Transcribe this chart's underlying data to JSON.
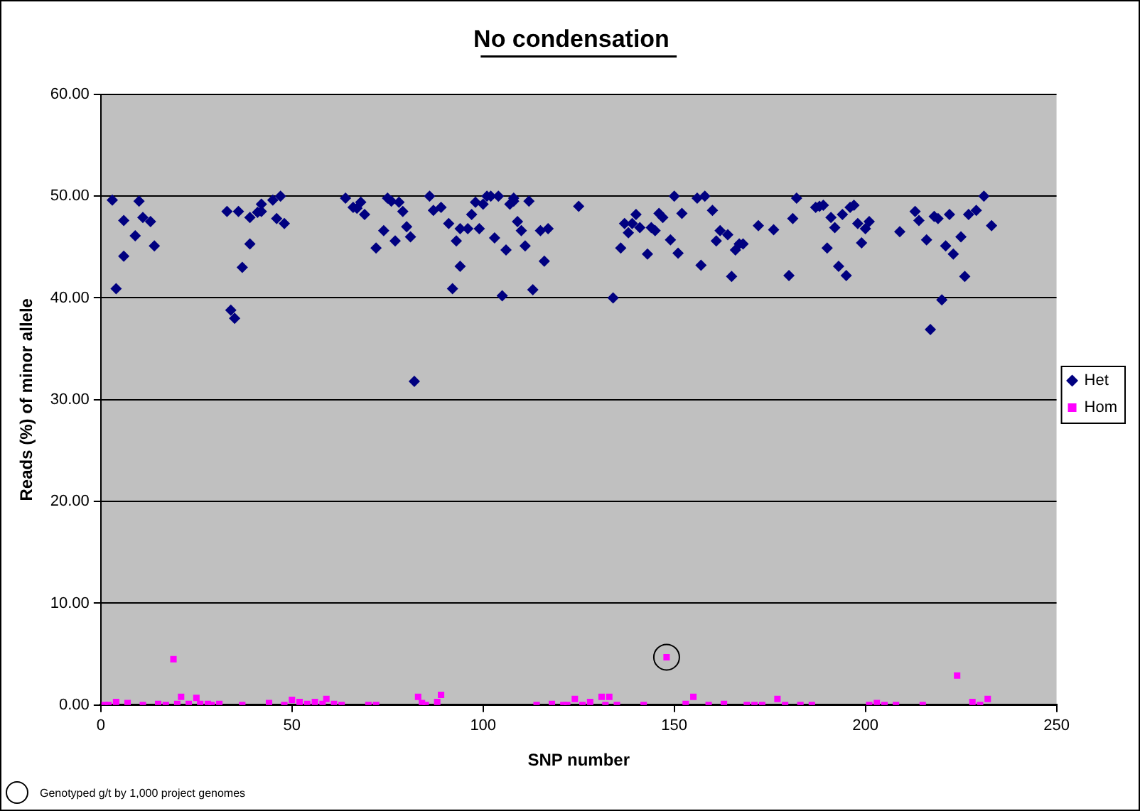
{
  "chart_data": {
    "type": "scatter",
    "title": "No condensation",
    "xlabel": "SNP number",
    "ylabel": "Reads (%) of minor allele",
    "xlim": [
      0,
      250
    ],
    "xticks": [
      0,
      50,
      100,
      150,
      200,
      250
    ],
    "ylim": [
      0,
      60
    ],
    "yticks": [
      {
        "value": 0,
        "label": "0.00"
      },
      {
        "value": 10,
        "label": "10.00"
      },
      {
        "value": 20,
        "label": "20.00"
      },
      {
        "value": 30,
        "label": "30.00"
      },
      {
        "value": 40,
        "label": "40.00"
      },
      {
        "value": 50,
        "label": "50.00"
      },
      {
        "value": 60,
        "label": "60.00"
      }
    ],
    "grid": "y",
    "legend": "right",
    "annotations": [
      "Genotyped g/t by 1,000 project genomes"
    ],
    "series": [
      {
        "name": "Het",
        "color": "#000080",
        "marker": "diamond",
        "x": [
          3,
          4,
          6,
          6,
          9,
          10,
          11,
          13,
          14,
          33,
          34,
          35,
          36,
          37,
          39,
          39,
          41,
          42,
          42,
          45,
          46,
          47,
          48,
          64,
          66,
          67,
          68,
          69,
          72,
          74,
          75,
          76,
          77,
          78,
          79,
          80,
          81,
          82,
          86,
          87,
          89,
          91,
          93,
          94,
          92,
          94,
          96,
          97,
          98,
          99,
          100,
          101,
          102,
          104,
          103,
          106,
          105,
          107,
          108,
          108,
          109,
          110,
          111,
          112,
          113,
          115,
          116,
          117,
          125,
          134,
          136,
          137,
          138,
          139,
          140,
          141,
          143,
          144,
          145,
          146,
          147,
          149,
          150,
          151,
          152,
          156,
          157,
          158,
          160,
          161,
          162,
          164,
          165,
          166,
          167,
          168,
          172,
          176,
          180,
          181,
          182,
          187,
          188,
          189,
          190,
          191,
          192,
          193,
          194,
          195,
          196,
          197,
          198,
          199,
          200,
          201,
          209,
          213,
          214,
          216,
          218,
          219,
          221,
          222,
          223,
          225,
          226,
          227,
          229,
          231,
          233,
          220,
          217
        ],
        "values": [
          49.6,
          40.9,
          47.6,
          44.1,
          46.1,
          49.5,
          47.9,
          47.5,
          45.1,
          48.5,
          38.8,
          38.0,
          48.5,
          43.0,
          45.3,
          47.9,
          48.4,
          49.2,
          48.5,
          49.6,
          47.8,
          50.0,
          47.3,
          49.8,
          48.9,
          48.8,
          49.4,
          48.2,
          44.9,
          46.6,
          49.8,
          49.5,
          45.6,
          49.4,
          48.5,
          47.0,
          46.0,
          31.8,
          50.0,
          48.6,
          48.9,
          47.3,
          45.6,
          43.1,
          40.9,
          46.8,
          46.8,
          48.2,
          49.4,
          46.8,
          49.2,
          50.0,
          50.0,
          50.0,
          45.9,
          44.7,
          40.2,
          49.2,
          49.5,
          49.8,
          47.5,
          46.6,
          45.1,
          49.5,
          40.8,
          46.6,
          43.6,
          46.8,
          49.0,
          40.0,
          44.9,
          47.3,
          46.4,
          47.3,
          48.2,
          46.9,
          44.3,
          46.9,
          46.6,
          48.3,
          47.9,
          45.7,
          50.0,
          44.4,
          48.3,
          49.8,
          43.2,
          50.0,
          48.6,
          45.6,
          46.6,
          46.2,
          42.1,
          44.7,
          45.3,
          45.3,
          47.1,
          46.7,
          42.2,
          47.8,
          49.8,
          48.9,
          49.0,
          49.1,
          44.9,
          47.9,
          46.9,
          43.1,
          48.2,
          42.2,
          48.9,
          49.1,
          47.3,
          45.4,
          46.8,
          47.5,
          46.5,
          48.5,
          47.6,
          45.7,
          48.0,
          47.8,
          45.1,
          48.2,
          44.3,
          46.0,
          42.1,
          48.2,
          48.6,
          50.0,
          47.1,
          39.8,
          36.9
        ]
      },
      {
        "name": "Hom",
        "color": "#ff00ff",
        "marker": "square",
        "x": [
          1,
          2,
          4,
          7,
          11,
          15,
          17,
          19,
          20,
          21,
          23,
          25,
          26,
          28,
          29,
          31,
          37,
          44,
          48,
          50,
          52,
          54,
          56,
          58,
          59,
          61,
          63,
          70,
          72,
          83,
          84,
          85,
          88,
          89,
          114,
          118,
          121,
          122,
          124,
          126,
          128,
          131,
          132,
          133,
          135,
          142,
          148,
          153,
          155,
          159,
          163,
          169,
          171,
          173,
          177,
          179,
          183,
          186,
          201,
          203,
          205,
          208,
          215,
          224,
          228,
          230,
          232
        ],
        "values": [
          0,
          0,
          0.3,
          0.2,
          0,
          0.1,
          0,
          4.5,
          0.1,
          0.8,
          0.1,
          0.7,
          0.1,
          0.1,
          0,
          0.1,
          0,
          0.2,
          0,
          0.5,
          0.3,
          0.1,
          0.3,
          0.1,
          0.6,
          0.1,
          0,
          0,
          0,
          0.8,
          0.2,
          0,
          0.3,
          1.0,
          0,
          0.1,
          0,
          0,
          0.6,
          0,
          0.3,
          0.8,
          0,
          0.8,
          0,
          0,
          4.7,
          0.1,
          0.8,
          0,
          0.1,
          0,
          0,
          0,
          0.6,
          0,
          0,
          0,
          0,
          0.2,
          0,
          0,
          0,
          2.9,
          0.3,
          0,
          0.6
        ]
      },
      {
        "color": "#000000",
        "marker": "circle",
        "x": [
          148
        ],
        "values": [
          4.7
        ]
      }
    ]
  }
}
